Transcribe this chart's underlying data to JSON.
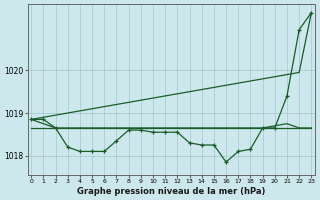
{
  "title": "Graphe pression niveau de la mer (hPa)",
  "xlabel_ticks": [
    "0",
    "1",
    "2",
    "3",
    "4",
    "5",
    "6",
    "7",
    "8",
    "9",
    "10",
    "11",
    "12",
    "13",
    "14",
    "15",
    "16",
    "17",
    "18",
    "19",
    "20",
    "21",
    "22",
    "23"
  ],
  "yticks": [
    1018,
    1019,
    1020
  ],
  "ylim": [
    1017.55,
    1021.55
  ],
  "xlim": [
    -0.3,
    23.3
  ],
  "bg_color": "#cce8ec",
  "grid_color": "#b8d8dc",
  "line_color": "#1a5c28",
  "series_main": [
    1018.85,
    1018.85,
    1018.65,
    1018.2,
    1018.1,
    1018.1,
    1018.1,
    1018.35,
    1018.6,
    1018.6,
    1018.55,
    1018.55,
    1018.55,
    1018.3,
    1018.25,
    1018.25,
    1017.85,
    1018.1,
    1018.15,
    1018.65,
    1018.65,
    1019.4,
    1020.95,
    1021.35
  ],
  "series_diag": [
    1018.85,
    1018.9,
    1018.95,
    1019.0,
    1019.05,
    1019.1,
    1019.15,
    1019.2,
    1019.25,
    1019.3,
    1019.35,
    1019.4,
    1019.45,
    1019.5,
    1019.55,
    1019.6,
    1019.65,
    1019.7,
    1019.75,
    1019.8,
    1019.85,
    1019.9,
    1019.95,
    1021.35
  ],
  "series_flat1": [
    1018.65,
    1018.65,
    1018.65,
    1018.65,
    1018.65,
    1018.65,
    1018.65,
    1018.65,
    1018.65,
    1018.65,
    1018.65,
    1018.65,
    1018.65,
    1018.65,
    1018.65,
    1018.65,
    1018.65,
    1018.65,
    1018.65,
    1018.65,
    1018.65,
    1018.65,
    1018.65,
    1018.65
  ],
  "series_flat2": [
    1018.85,
    1018.75,
    1018.65,
    1018.65,
    1018.65,
    1018.65,
    1018.65,
    1018.65,
    1018.65,
    1018.65,
    1018.65,
    1018.65,
    1018.65,
    1018.65,
    1018.65,
    1018.65,
    1018.65,
    1018.65,
    1018.65,
    1018.65,
    1018.7,
    1018.75,
    1018.65,
    1018.65
  ]
}
